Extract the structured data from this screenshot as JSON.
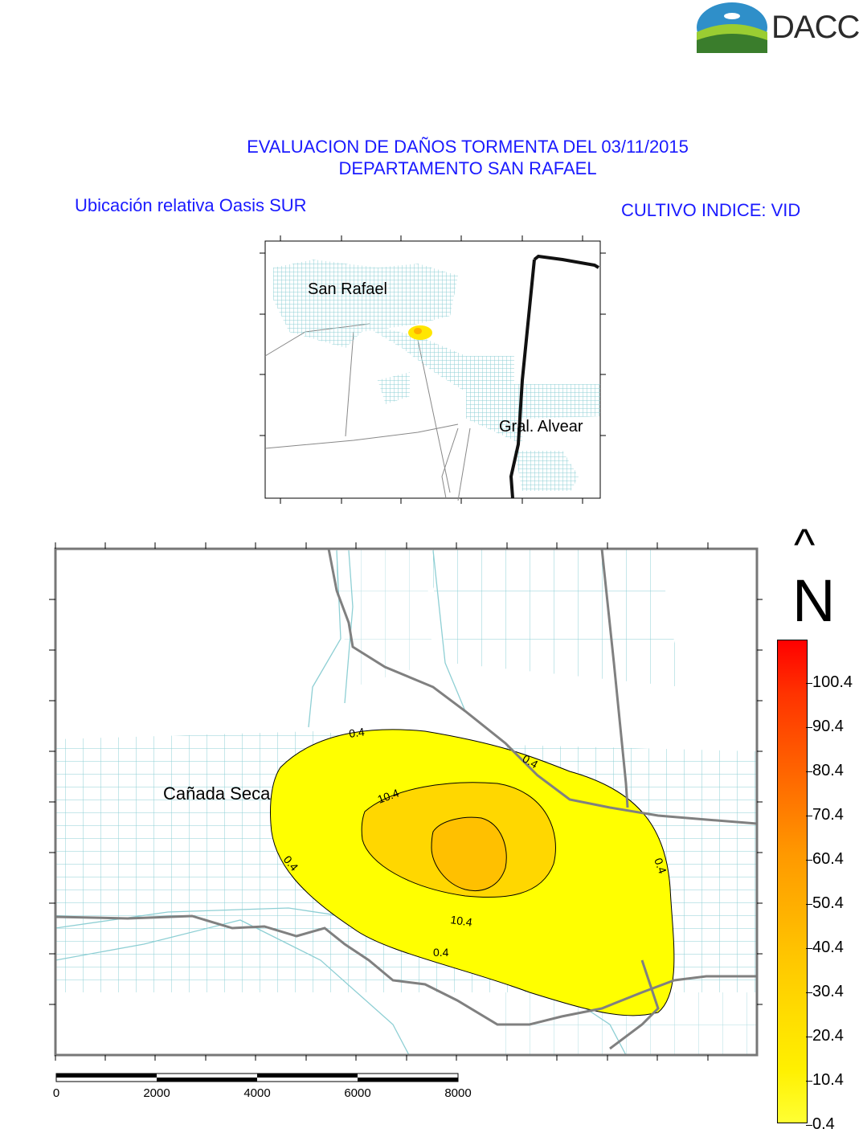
{
  "logo": {
    "text": "DACC",
    "colors": {
      "sky": "#2f8fc9",
      "field_light": "#9acd32",
      "field_dark": "#3a7d2c"
    }
  },
  "title": {
    "line1": "EVALUACION DE DAÑOS TORMENTA DEL 03/11/2015",
    "line2": "DEPARTAMENTO SAN RAFAEL"
  },
  "subtitle_left": "Ubicación relativa Oasis SUR",
  "subtitle_right": "CULTIVO INDICE: VID",
  "inset_map": {
    "labels": {
      "city_1": "San Rafael",
      "city_2": "Gral. Alvear"
    }
  },
  "main_map": {
    "place_label": "Cañada Seca",
    "contour_labels": [
      "0.4",
      "0.4",
      "0.4",
      "0.4",
      "0.4",
      "10.4",
      "10.4"
    ]
  },
  "north_arrow": {
    "arrow": "^",
    "letter": "N"
  },
  "legend": {
    "values": [
      "100.4",
      "90.4",
      "80.4",
      "70.4",
      "60.4",
      "50.4",
      "40.4",
      "30.4",
      "20.4",
      "10.4",
      "0.4"
    ],
    "colors": [
      "#ff0000",
      "#ff3300",
      "#ff5500",
      "#ff7700",
      "#ff9900",
      "#ffb000",
      "#ffc800",
      "#ffdd00",
      "#fff000",
      "#ffff33"
    ]
  },
  "scale_bar": {
    "labels": [
      "0",
      "2000",
      "4000",
      "6000",
      "8000"
    ]
  },
  "colors": {
    "title_text": "#1a1aff",
    "streets": "#8ecfd4",
    "roads": "#808080",
    "boundary": "#111111"
  }
}
